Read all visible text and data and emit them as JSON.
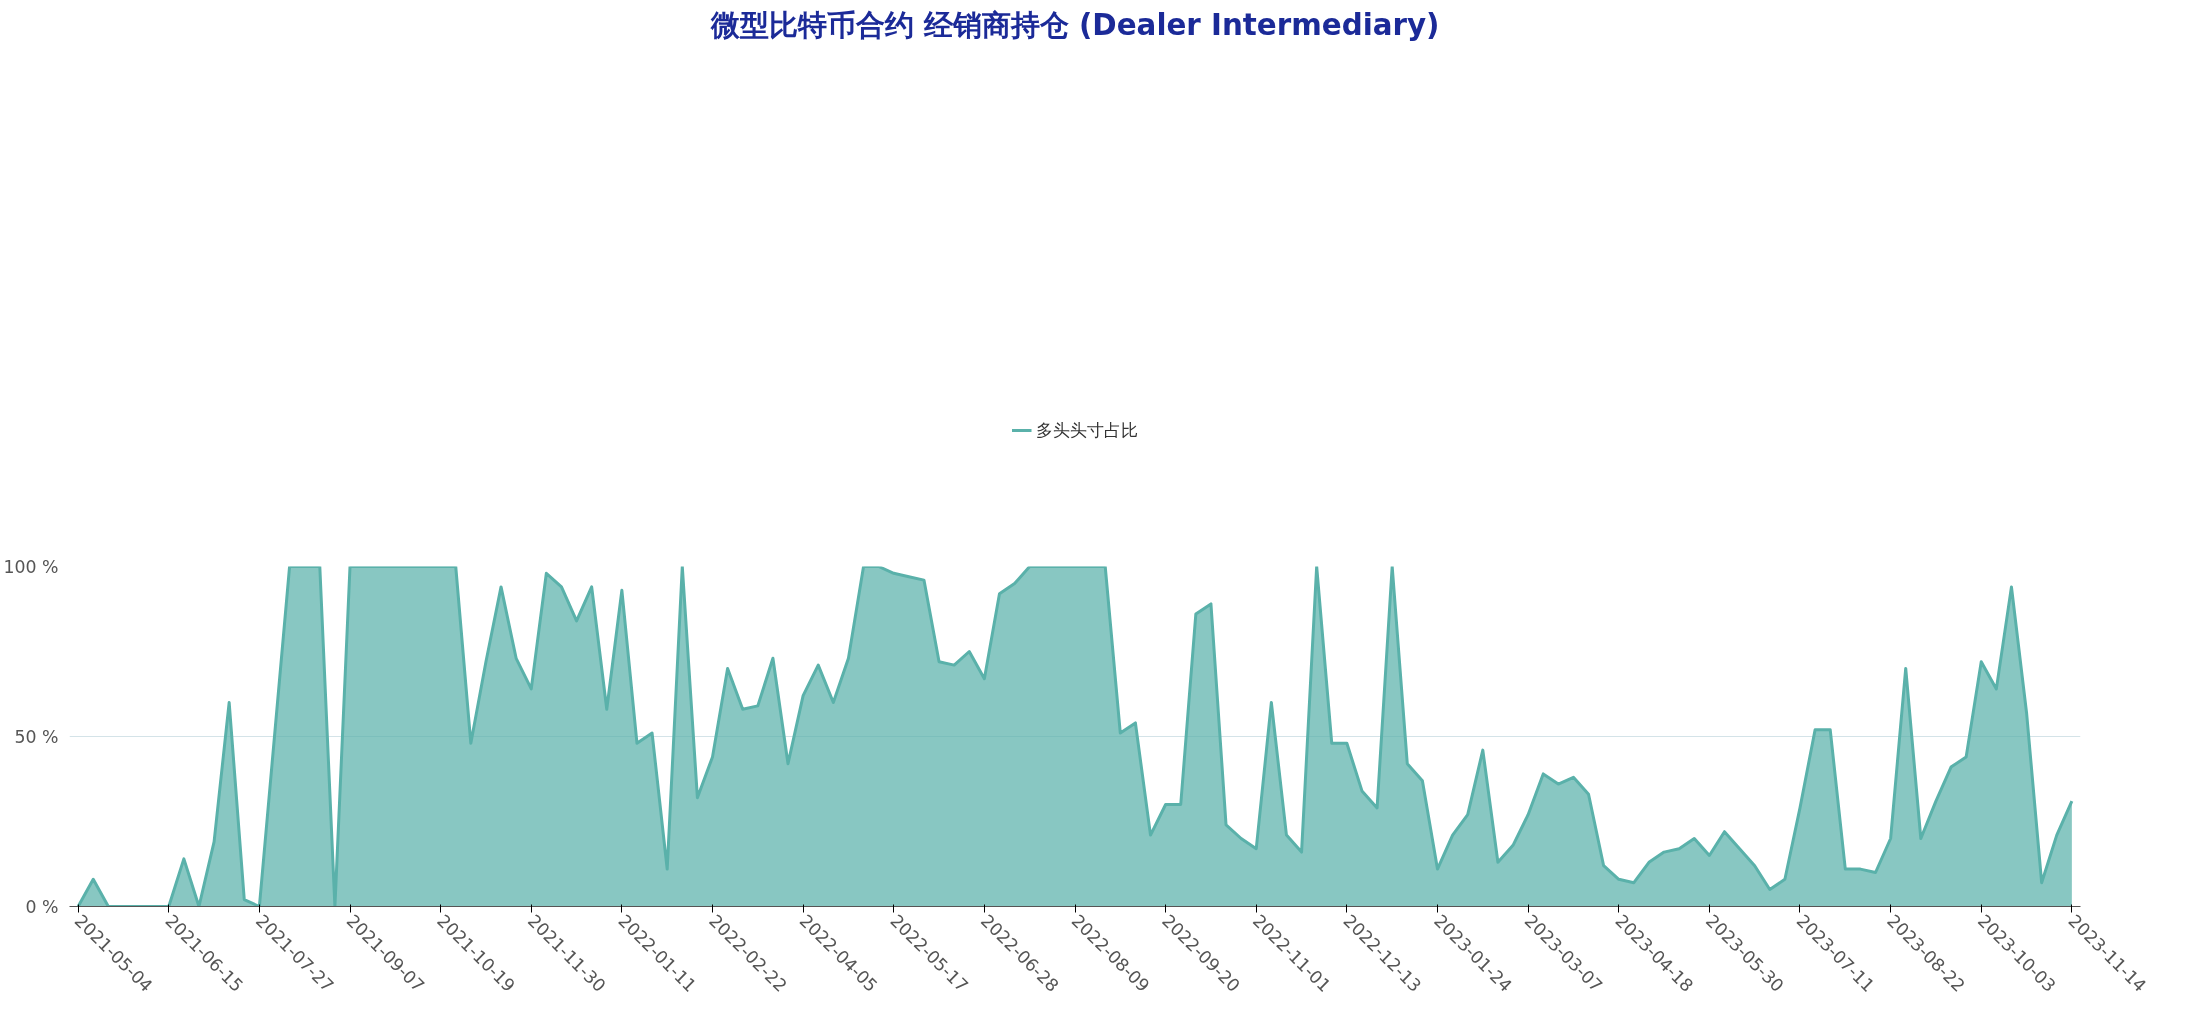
{
  "chart_data": {
    "type": "area",
    "title": "微型比特币合约 经销商持仓 (Dealer Intermediary)",
    "x": [
      "2021-05-04",
      "2021-05-11",
      "2021-05-18",
      "2021-05-25",
      "2021-06-01",
      "2021-06-08",
      "2021-06-15",
      "2021-06-22",
      "2021-06-29",
      "2021-07-06",
      "2021-07-13",
      "2021-07-20",
      "2021-07-27",
      "2021-08-03",
      "2021-08-10",
      "2021-08-17",
      "2021-08-24",
      "2021-08-31",
      "2021-09-07",
      "2021-09-14",
      "2021-09-21",
      "2021-09-28",
      "2021-10-05",
      "2021-10-12",
      "2021-10-19",
      "2021-10-26",
      "2021-11-02",
      "2021-11-09",
      "2021-11-16",
      "2021-11-23",
      "2021-11-30",
      "2021-12-07",
      "2021-12-14",
      "2021-12-21",
      "2021-12-28",
      "2022-01-04",
      "2022-01-11",
      "2022-01-18",
      "2022-01-25",
      "2022-02-01",
      "2022-02-08",
      "2022-02-15",
      "2022-02-22",
      "2022-03-01",
      "2022-03-08",
      "2022-03-15",
      "2022-03-22",
      "2022-03-29",
      "2022-04-05",
      "2022-04-12",
      "2022-04-19",
      "2022-04-26",
      "2022-05-03",
      "2022-05-10",
      "2022-05-17",
      "2022-05-24",
      "2022-05-31",
      "2022-06-07",
      "2022-06-14",
      "2022-06-21",
      "2022-06-28",
      "2022-07-05",
      "2022-07-12",
      "2022-07-19",
      "2022-07-26",
      "2022-08-02",
      "2022-08-09",
      "2022-08-16",
      "2022-08-23",
      "2022-08-30",
      "2022-09-06",
      "2022-09-13",
      "2022-09-20",
      "2022-09-27",
      "2022-10-04",
      "2022-10-11",
      "2022-10-18",
      "2022-10-25",
      "2022-11-01",
      "2022-11-08",
      "2022-11-15",
      "2022-11-22",
      "2022-11-29",
      "2022-12-06",
      "2022-12-13",
      "2022-12-20",
      "2022-12-27",
      "2023-01-03",
      "2023-01-10",
      "2023-01-17",
      "2023-01-24",
      "2023-01-31",
      "2023-02-07",
      "2023-02-14",
      "2023-02-21",
      "2023-02-28",
      "2023-03-07",
      "2023-03-14",
      "2023-03-21",
      "2023-03-28",
      "2023-04-04",
      "2023-04-11",
      "2023-04-18",
      "2023-04-25",
      "2023-05-02",
      "2023-05-09",
      "2023-05-16",
      "2023-05-23",
      "2023-05-30",
      "2023-06-06",
      "2023-06-13",
      "2023-06-20",
      "2023-06-27",
      "2023-07-04",
      "2023-07-11",
      "2023-07-18",
      "2023-07-25",
      "2023-08-01",
      "2023-08-08",
      "2023-08-15",
      "2023-08-22",
      "2023-08-29",
      "2023-09-05",
      "2023-09-12",
      "2023-09-19",
      "2023-09-26",
      "2023-10-03",
      "2023-10-10",
      "2023-10-17",
      "2023-10-24",
      "2023-10-31",
      "2023-11-07",
      "2023-11-14"
    ],
    "series": [
      {
        "name": "多头头寸占比",
        "color": "#5ab1aa",
        "values": [
          0,
          8,
          0,
          0,
          0,
          0,
          0,
          14,
          0,
          19,
          60,
          2,
          0,
          50,
          100,
          100,
          100,
          0,
          100,
          100,
          100,
          100,
          100,
          100,
          100,
          100,
          48,
          72,
          94,
          73,
          64,
          98,
          94,
          84,
          94,
          58,
          93,
          48,
          51,
          11,
          100,
          32,
          44,
          70,
          58,
          59,
          73,
          42,
          62,
          71,
          60,
          73,
          100,
          100,
          98,
          97,
          96,
          72,
          71,
          75,
          67,
          92,
          95,
          100,
          100,
          100,
          100,
          100,
          100,
          51,
          54,
          21,
          30,
          30,
          86,
          89,
          24,
          20,
          17,
          60,
          21,
          16,
          100,
          48,
          48,
          34,
          29,
          100,
          42,
          37,
          11,
          21,
          27,
          46,
          13,
          18,
          27,
          39,
          36,
          38,
          33,
          12,
          8,
          7,
          13,
          16,
          17,
          20,
          15,
          22,
          17,
          12,
          5,
          8,
          29,
          52,
          52,
          11,
          11,
          10,
          20,
          70,
          20,
          31,
          41,
          44,
          72,
          64,
          94,
          57,
          7,
          21,
          31
        ]
      }
    ],
    "xlim": [
      "2021-04-30",
      "2023-11-18"
    ],
    "xticks": [
      "2021-05-04",
      "2021-06-15",
      "2021-07-27",
      "2021-09-07",
      "2021-10-19",
      "2021-11-30",
      "2022-01-11",
      "2022-02-22",
      "2022-04-05",
      "2022-05-17",
      "2022-06-28",
      "2022-08-09",
      "2022-09-20",
      "2022-11-01",
      "2022-12-13",
      "2023-01-24",
      "2023-03-07",
      "2023-04-18",
      "2023-05-30",
      "2023-07-11",
      "2023-08-22",
      "2023-10-03",
      "2023-11-14"
    ],
    "ylim": [
      0,
      100
    ],
    "yticks": [
      {
        "value": 0,
        "label": "0 %"
      },
      {
        "value": 50,
        "label": "50 %"
      },
      {
        "value": 100,
        "label": "100 %"
      }
    ],
    "grid": "y",
    "legend": "top",
    "line_style": "solid"
  }
}
